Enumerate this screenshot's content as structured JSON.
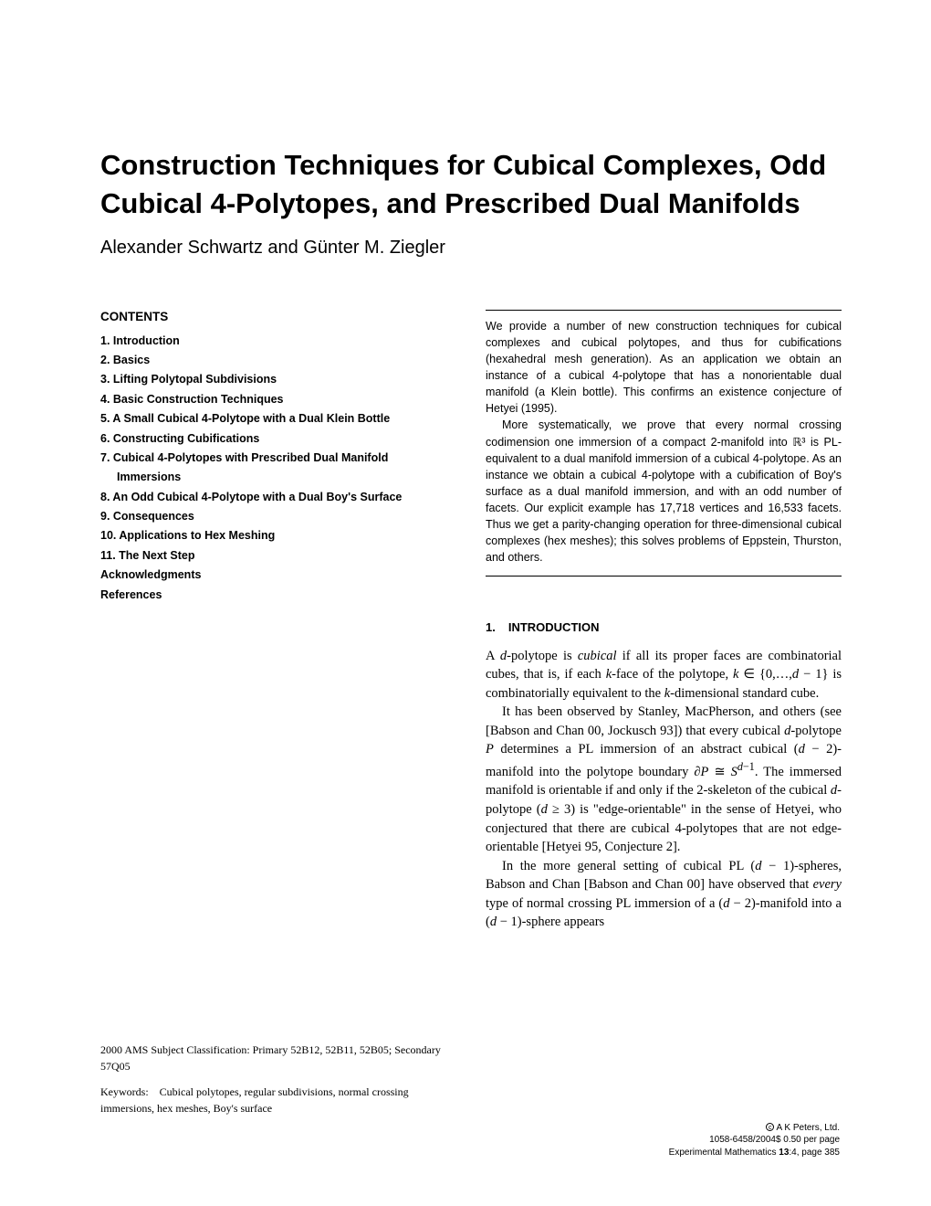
{
  "title": "Construction Techniques for Cubical Complexes, Odd Cubical 4-Polytopes, and Prescribed Dual Manifolds",
  "authors": "Alexander Schwartz and Günter M. Ziegler",
  "contents": {
    "heading": "CONTENTS",
    "items": [
      "1. Introduction",
      "2. Basics",
      "3. Lifting Polytopal Subdivisions",
      "4. Basic Construction Techniques",
      "5. A Small Cubical 4-Polytope with a Dual Klein Bottle",
      "6. Constructing Cubifications",
      "7. Cubical 4-Polytopes with Prescribed Dual Manifold",
      "Immersions",
      "8. An Odd Cubical 4-Polytope with a Dual Boy's Surface",
      "9. Consequences",
      "10. Applications to Hex Meshing",
      "11. The Next Step",
      "Acknowledgments",
      "References"
    ],
    "indent_indices": [
      7
    ]
  },
  "abstract": {
    "p1": "We provide a number of new construction techniques for cubical complexes and cubical polytopes, and thus for cubifications (hexahedral mesh generation). As an application we obtain an instance of a cubical 4-polytope that has a nonorientable dual manifold (a Klein bottle). This confirms an existence conjecture of Hetyei (1995).",
    "p2": "More systematically, we prove that every normal crossing codimension one immersion of a compact 2-manifold into ℝ³ is PL-equivalent to a dual manifold immersion of a cubical 4-polytope. As an instance we obtain a cubical 4-polytope with a cubification of Boy's surface as a dual manifold immersion, and with an odd number of facets. Our explicit example has 17,718 vertices and 16,533 facets. Thus we get a parity-changing operation for three-dimensional cubical complexes (hex meshes); this solves problems of Eppstein, Thurston, and others."
  },
  "intro": {
    "num": "1.",
    "heading": "INTRODUCTION",
    "p1_html": "A <span class='italic'>d</span>-polytope is <span class='italic'>cubical</span> if all its proper faces are combinatorial cubes, that is, if each <span class='italic'>k</span>-face of the polytope, <span class='italic'>k</span> ∈ {0,…,<span class='italic'>d</span> − 1} is combinatorially equivalent to the <span class='italic'>k</span>-dimensional standard cube.",
    "p2_html": "It has been observed by Stanley, MacPherson, and others (see [Babson and Chan 00, Jockusch 93]) that every cubical <span class='italic'>d</span>-polytope <span class='italic'>P</span> determines a PL immersion of an abstract cubical (<span class='italic'>d</span> − 2)-manifold into the polytope boundary <span class='italic'>∂P</span> ≅ <span class='italic'>S</span><sup><span class='italic'>d</span>−1</sup>. The immersed manifold is orientable if and only if the 2-skeleton of the cubical <span class='italic'>d</span>-polytope (<span class='italic'>d</span> ≥ 3) is \"edge-orientable\" in the sense of Hetyei, who conjectured that there are cubical 4-polytopes that are not edge-orientable [Hetyei 95, Conjecture 2].",
    "p3_html": "In the more general setting of cubical PL (<span class='italic'>d</span> − 1)-spheres, Babson and Chan [Babson and Chan 00] have observed that <span class='italic'>every</span> type of normal crossing PL immersion of a (<span class='italic'>d</span> − 2)-manifold into a (<span class='italic'>d</span> − 1)-sphere appears"
  },
  "footer_left": {
    "ams": "2000 AMS Subject Classification: Primary 52B12, 52B11, 52B05; Secondary 57Q05",
    "keywords": "Keywords: Cubical polytopes, regular subdivisions, normal crossing immersions, hex meshes, Boy's surface"
  },
  "footer_right": {
    "l1": " A K Peters, Ltd.",
    "l2": "1058-6458/2004$ 0.50 per page",
    "l3_html": "Experimental Mathematics <b>13</b>:4, page 385"
  }
}
